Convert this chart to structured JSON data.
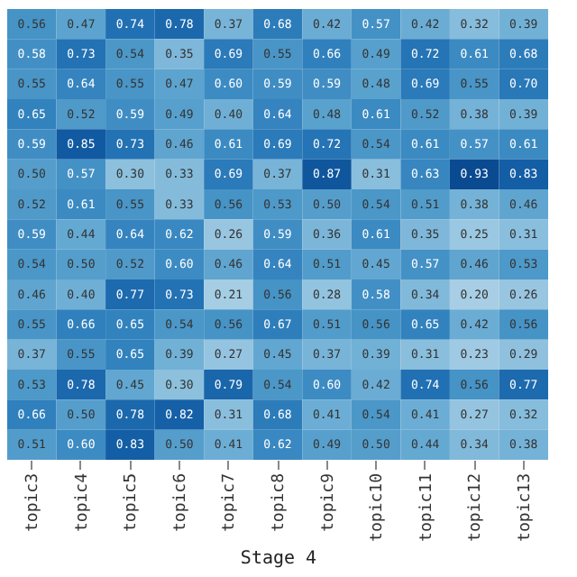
{
  "chart_data": {
    "type": "heatmap",
    "xlabel": "Stage 4",
    "tick_labels": "x",
    "data_labels": true,
    "categories": [
      "topic3",
      "topic4",
      "topic5",
      "topic6",
      "topic7",
      "topic8",
      "topic9",
      "topic10",
      "topic11",
      "topic12",
      "topic13"
    ],
    "y_categories": [
      null,
      null,
      null,
      null,
      null,
      null,
      null,
      null,
      null,
      null,
      null,
      null,
      null,
      null,
      null
    ],
    "cells": [
      [
        0.56,
        0.47,
        0.74,
        0.78,
        0.37,
        0.68,
        0.42,
        0.57,
        0.42,
        0.32,
        0.39
      ],
      [
        0.58,
        0.73,
        0.54,
        0.35,
        0.69,
        0.55,
        0.66,
        0.49,
        0.72,
        0.61,
        0.68
      ],
      [
        0.55,
        0.64,
        0.55,
        0.47,
        0.6,
        0.59,
        0.59,
        0.48,
        0.69,
        0.55,
        0.7
      ],
      [
        0.65,
        0.52,
        0.59,
        0.49,
        0.4,
        0.64,
        0.48,
        0.61,
        0.52,
        0.38,
        0.39
      ],
      [
        0.59,
        0.85,
        0.73,
        0.46,
        0.61,
        0.69,
        0.72,
        0.54,
        0.61,
        0.57,
        0.61
      ],
      [
        0.5,
        0.57,
        0.3,
        0.33,
        0.69,
        0.37,
        0.87,
        0.31,
        0.63,
        0.93,
        0.83
      ],
      [
        0.52,
        0.61,
        0.55,
        0.33,
        0.56,
        0.53,
        0.5,
        0.54,
        0.51,
        0.38,
        0.46
      ],
      [
        0.59,
        0.44,
        0.64,
        0.62,
        0.26,
        0.59,
        0.36,
        0.61,
        0.35,
        0.25,
        0.31
      ],
      [
        0.54,
        0.5,
        0.52,
        0.6,
        0.46,
        0.64,
        0.51,
        0.45,
        0.57,
        0.46,
        0.53
      ],
      [
        0.46,
        0.4,
        0.77,
        0.73,
        0.21,
        0.56,
        0.28,
        0.58,
        0.34,
        0.2,
        0.26
      ],
      [
        0.55,
        0.66,
        0.65,
        0.54,
        0.56,
        0.67,
        0.51,
        0.56,
        0.65,
        0.42,
        0.56
      ],
      [
        0.37,
        0.55,
        0.65,
        0.39,
        0.27,
        0.45,
        0.37,
        0.39,
        0.31,
        0.23,
        0.29
      ],
      [
        0.53,
        0.78,
        0.45,
        0.3,
        0.79,
        0.54,
        0.6,
        0.42,
        0.74,
        0.56,
        0.77
      ],
      [
        0.66,
        0.5,
        0.78,
        0.82,
        0.31,
        0.68,
        0.41,
        0.54,
        0.41,
        0.27,
        0.32
      ],
      [
        0.51,
        0.6,
        0.83,
        0.5,
        0.41,
        0.62,
        0.49,
        0.5,
        0.44,
        0.34,
        0.38
      ]
    ],
    "cell_labels": [
      [
        "0.56",
        "0.47",
        "0.74",
        "0.78",
        "0.37",
        "0.68",
        "0.42",
        "0.57",
        "0.42",
        "0.32",
        "0.39"
      ],
      [
        "0.58",
        "0.73",
        "0.54",
        "0.35",
        "0.69",
        "0.55",
        "0.66",
        "0.49",
        "0.72",
        "0.61",
        "0.68"
      ],
      [
        "0.55",
        "0.64",
        "0.55",
        "0.47",
        "0.60",
        "0.59",
        "0.59",
        "0.48",
        "0.69",
        "0.55",
        "0.70"
      ],
      [
        "0.65",
        "0.52",
        "0.59",
        "0.49",
        "0.40",
        "0.64",
        "0.48",
        "0.61",
        "0.52",
        "0.38",
        "0.39"
      ],
      [
        "0.59",
        "0.85",
        "0.73",
        "0.46",
        "0.61",
        "0.69",
        "0.72",
        "0.54",
        "0.61",
        "0.57",
        "0.61"
      ],
      [
        "0.50",
        "0.57",
        "0.30",
        "0.33",
        "0.69",
        "0.37",
        "0.87",
        "0.31",
        "0.63",
        "0.93",
        "0.83"
      ],
      [
        "0.52",
        "0.61",
        "0.55",
        "0.33",
        "0.56",
        "0.53",
        "0.50",
        "0.54",
        "0.51",
        "0.38",
        "0.46"
      ],
      [
        "0.59",
        "0.44",
        "0.64",
        "0.62",
        "0.26",
        "0.59",
        "0.36",
        "0.61",
        "0.35",
        "0.25",
        "0.31"
      ],
      [
        "0.54",
        "0.50",
        "0.52",
        "0.60",
        "0.46",
        "0.64",
        "0.51",
        "0.45",
        "0.57",
        "0.46",
        "0.53"
      ],
      [
        "0.46",
        "0.40",
        "0.77",
        "0.73",
        "0.21",
        "0.56",
        "0.28",
        "0.58",
        "0.34",
        "0.20",
        "0.26"
      ],
      [
        "0.55",
        "0.66",
        "0.65",
        "0.54",
        "0.56",
        "0.67",
        "0.51",
        "0.56",
        "0.65",
        "0.42",
        "0.56"
      ],
      [
        "0.37",
        "0.55",
        "0.65",
        "0.39",
        "0.27",
        "0.45",
        "0.37",
        "0.39",
        "0.31",
        "0.23",
        "0.29"
      ],
      [
        "0.53",
        "0.78",
        "0.45",
        "0.30",
        "0.79",
        "0.54",
        "0.60",
        "0.42",
        "0.74",
        "0.56",
        "0.77"
      ],
      [
        "0.66",
        "0.50",
        "0.78",
        "0.82",
        "0.31",
        "0.68",
        "0.41",
        "0.54",
        "0.41",
        "0.27",
        "0.32"
      ],
      [
        "0.51",
        "0.60",
        "0.83",
        "0.50",
        "0.41",
        "0.62",
        "0.49",
        "0.50",
        "0.44",
        "0.34",
        "0.38"
      ]
    ]
  }
}
